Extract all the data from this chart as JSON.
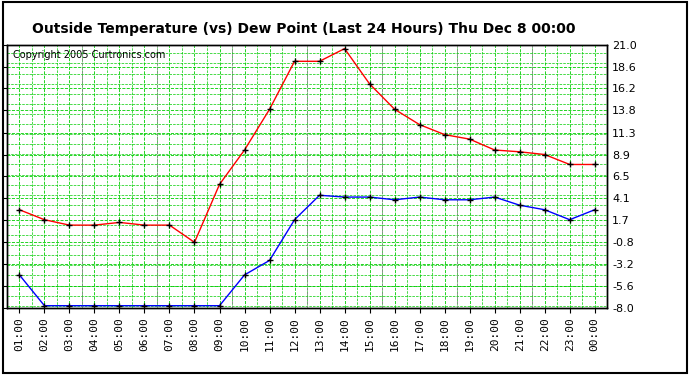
{
  "title": "Outside Temperature (vs) Dew Point (Last 24 Hours) Thu Dec 8 00:00",
  "copyright": "Copyright 2005 Curtronics.com",
  "background_color": "#ffffff",
  "plot_bg_color": "#ffffff",
  "grid_color": "#00cc00",
  "grid_color_minor": "#00cc00",
  "x_labels": [
    "01:00",
    "02:00",
    "03:00",
    "04:00",
    "05:00",
    "06:00",
    "07:00",
    "08:00",
    "09:00",
    "10:00",
    "11:00",
    "12:00",
    "13:00",
    "14:00",
    "15:00",
    "16:00",
    "17:00",
    "18:00",
    "19:00",
    "20:00",
    "21:00",
    "22:00",
    "23:00",
    "00:00"
  ],
  "y_ticks": [
    -8.0,
    -5.6,
    -3.2,
    -0.8,
    1.7,
    4.1,
    6.5,
    8.9,
    11.3,
    13.8,
    16.2,
    18.6,
    21.0
  ],
  "ylim": [
    -8.0,
    21.0
  ],
  "temp_color": "#ff0000",
  "dew_color": "#0000ff",
  "temp_data": [
    2.8,
    1.7,
    1.1,
    1.1,
    1.4,
    1.1,
    1.1,
    -0.8,
    5.6,
    9.4,
    13.9,
    19.2,
    19.2,
    20.6,
    16.7,
    13.9,
    12.2,
    11.1,
    10.6,
    9.4,
    9.2,
    8.9,
    7.8,
    7.8
  ],
  "dew_data": [
    -4.4,
    -7.8,
    -7.8,
    -7.8,
    -7.8,
    -7.8,
    -7.8,
    -7.8,
    -7.8,
    -4.4,
    -2.8,
    1.7,
    4.4,
    4.2,
    4.2,
    3.9,
    4.2,
    3.9,
    3.9,
    4.2,
    3.3,
    2.8,
    1.7,
    2.8
  ],
  "title_fontsize": 10,
  "tick_fontsize": 8,
  "copyright_fontsize": 7
}
